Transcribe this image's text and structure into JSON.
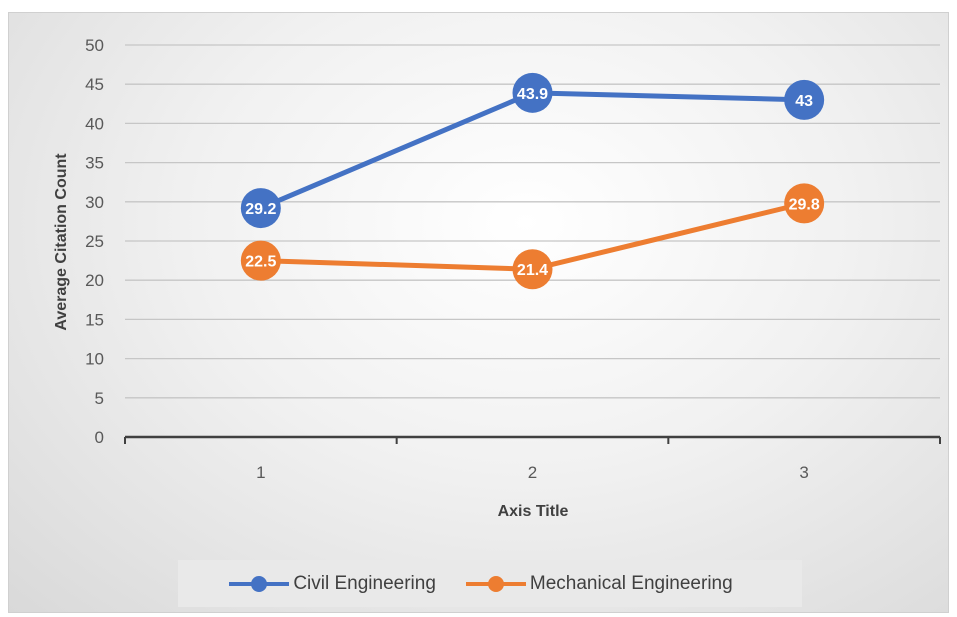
{
  "chart_data": {
    "type": "line",
    "title": "",
    "xlabel": "Axis Title",
    "ylabel": "Average Citation Count",
    "categories": [
      "1",
      "2",
      "3"
    ],
    "ylim": [
      0,
      50
    ],
    "yticks": [
      0,
      5,
      10,
      15,
      20,
      25,
      30,
      35,
      40,
      45,
      50
    ],
    "grid": true,
    "legend_position": "bottom",
    "series": [
      {
        "name": "Civil Engineering",
        "color": "#4472C4",
        "values": [
          29.2,
          43.9,
          43
        ]
      },
      {
        "name": "Mechanical Engineering",
        "color": "#ED7D31",
        "values": [
          22.5,
          21.4,
          29.8
        ]
      }
    ]
  }
}
